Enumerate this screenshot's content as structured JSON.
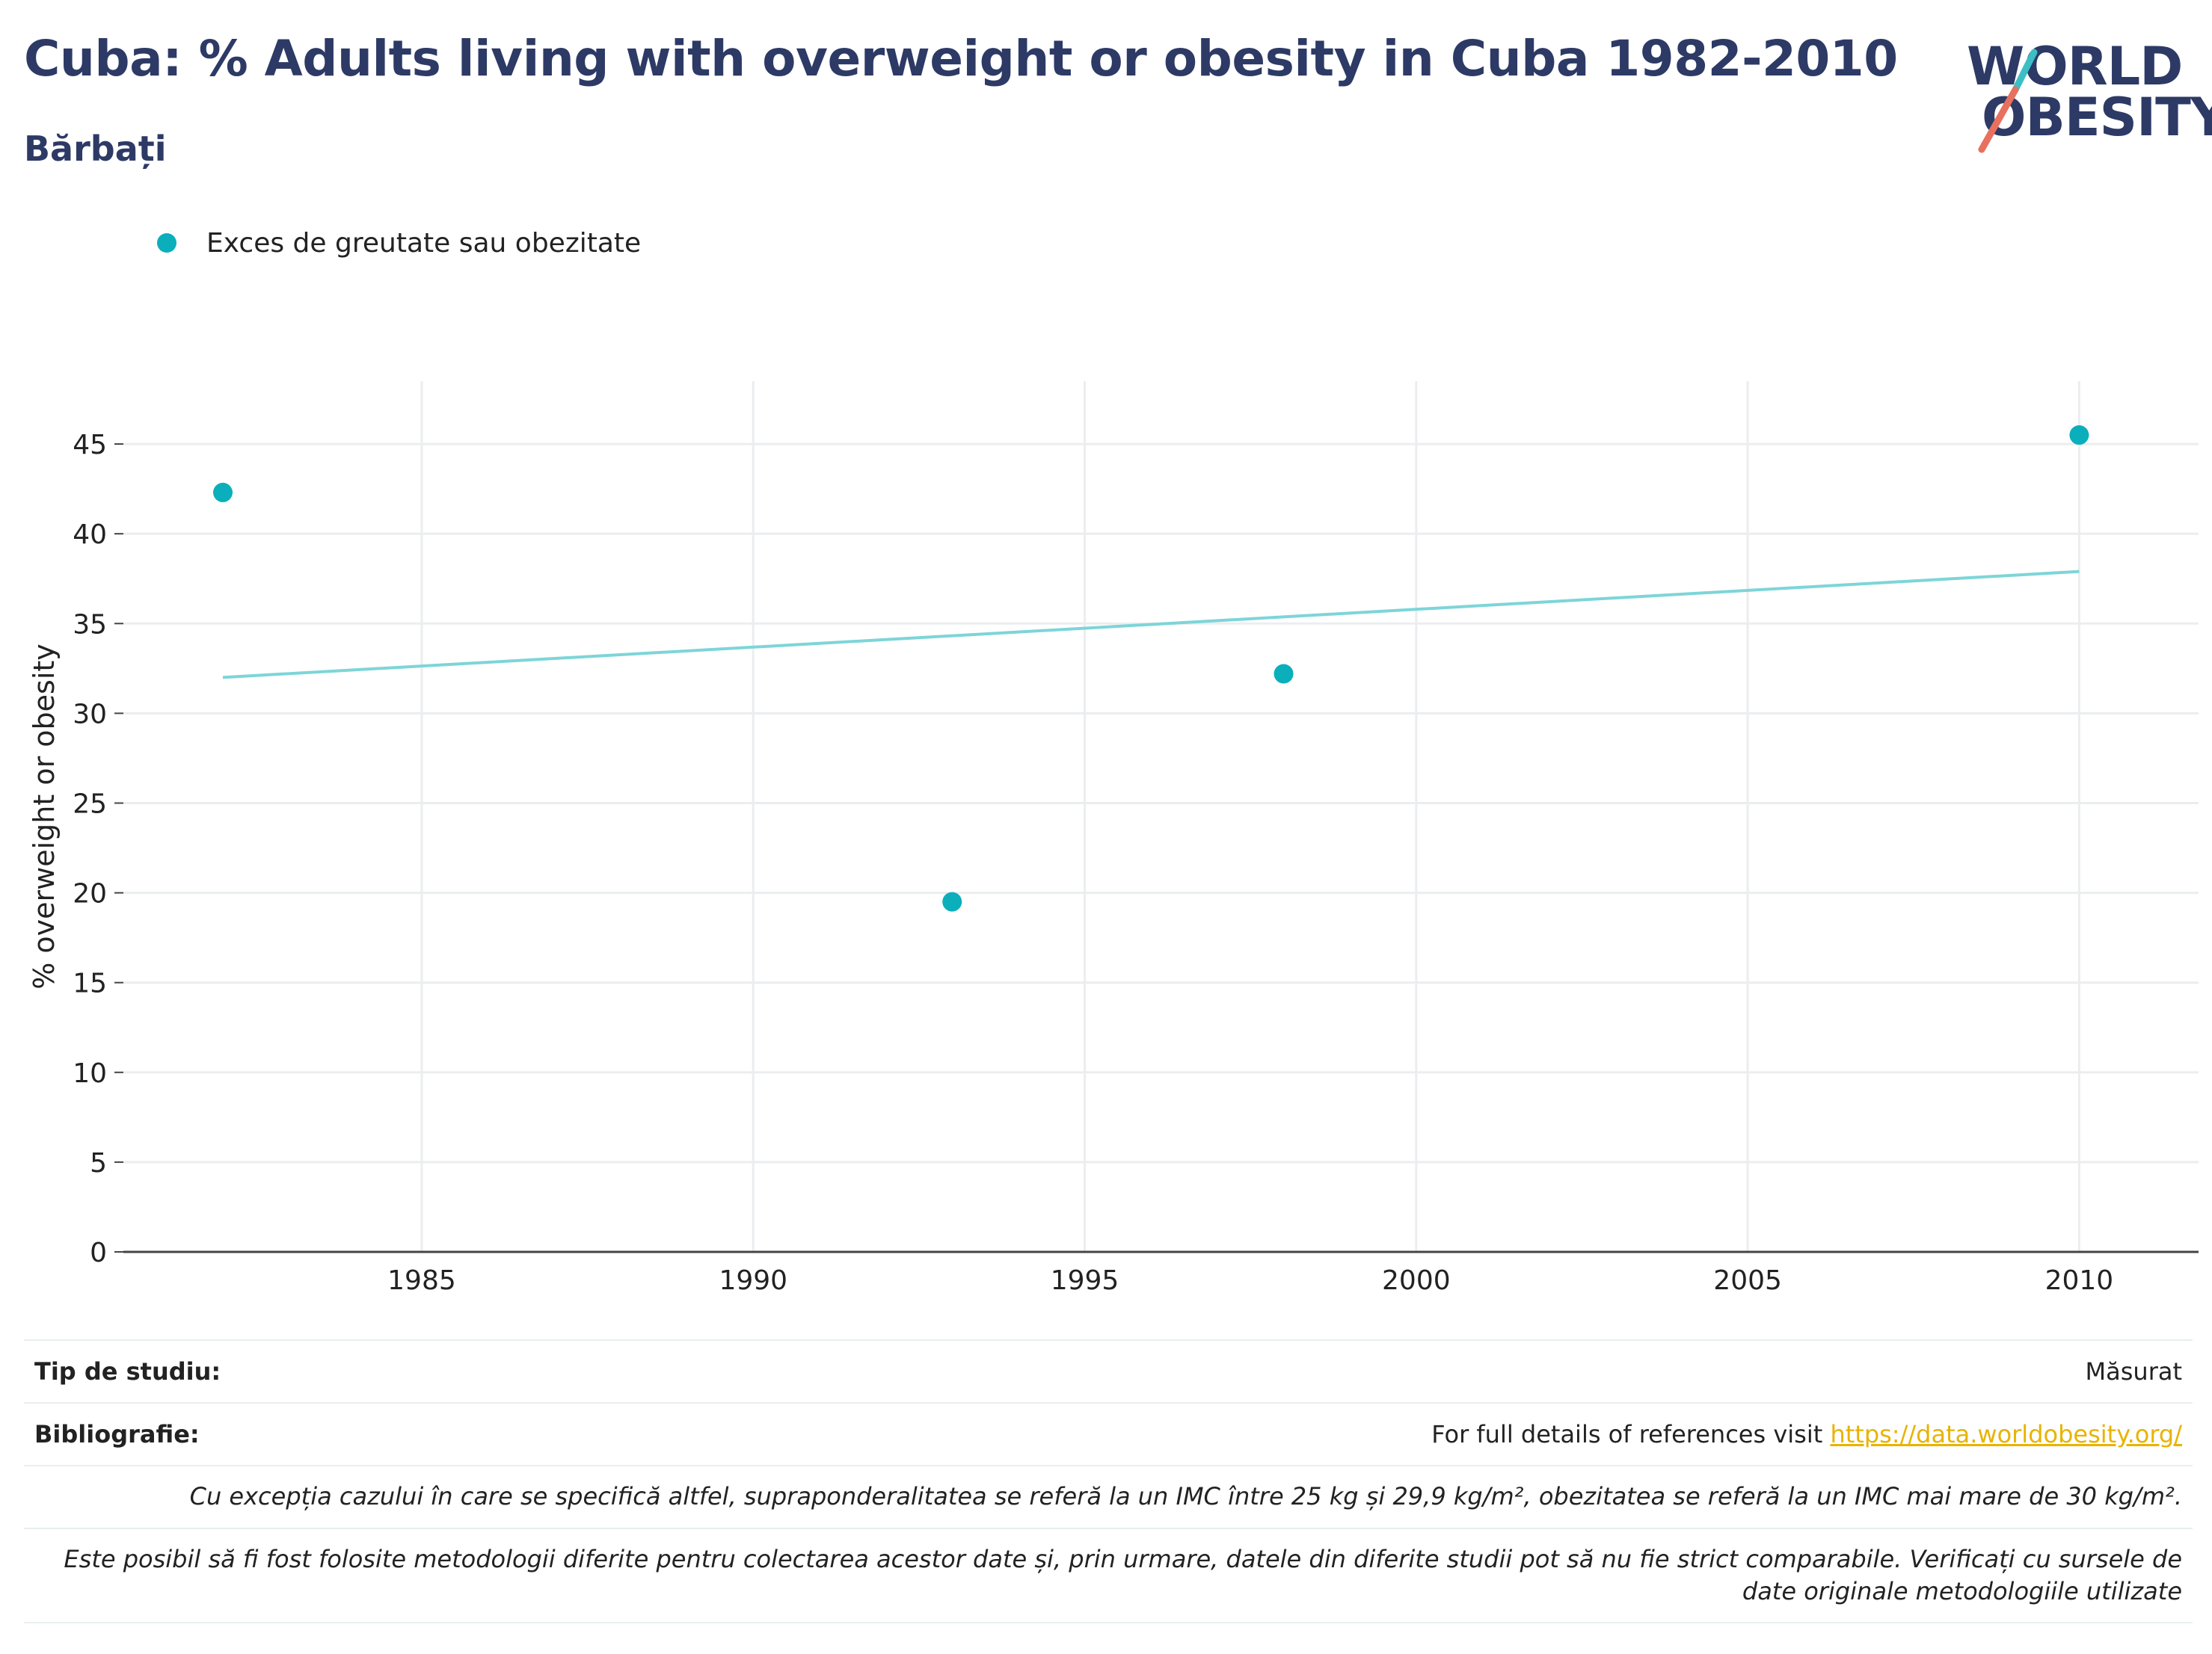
{
  "header": {
    "title": "Cuba: % Adults living with overweight or obesity in Cuba 1982-2010",
    "subtitle": "Bărbați"
  },
  "logo": {
    "line1": "WORLD",
    "line2": "OBESITY",
    "slash_colors": [
      "#3bbfc4",
      "#e7705f"
    ]
  },
  "legend": {
    "label": "Exces de greutate sau obezitate",
    "color": "#0aafbb"
  },
  "colors": {
    "points": "#0aafbb",
    "trend": "#7dd5d8",
    "grid": "#ebedef",
    "axis": "#444444",
    "title": "#2d3a66",
    "link": "#e8b300"
  },
  "chart_data": {
    "type": "scatter",
    "title": "Cuba: % Adults living with overweight or obesity in Cuba 1982-2010",
    "subtitle": "Bărbați",
    "ylabel": "% overweight or obesity",
    "xlabel": "",
    "xlim": [
      1980.5,
      2011.8
    ],
    "ylim": [
      0,
      48.5
    ],
    "xticks": [
      1985,
      1990,
      1995,
      2000,
      2005,
      2010
    ],
    "yticks": [
      0,
      5,
      10,
      15,
      20,
      25,
      30,
      35,
      40,
      45
    ],
    "grid": true,
    "legend_position": "top-left",
    "series": [
      {
        "name": "Exces de greutate sau obezitate",
        "x": [
          1982,
          1993,
          1998,
          2010
        ],
        "y": [
          42.3,
          19.5,
          32.2,
          45.5
        ]
      }
    ],
    "trendline": {
      "x": [
        1982,
        2010
      ],
      "y": [
        32.0,
        37.9
      ]
    }
  },
  "footer": {
    "study_type_label": "Tip de studiu:",
    "study_type_value": "Măsurat",
    "bibliography_label": "Bibliografie:",
    "bibliography_text": "For full details of references visit ",
    "bibliography_link": "https://data.worldobesity.org/",
    "note1": "Cu excepția cazului în care se specifică altfel, supraponderalitatea se referă la un IMC între 25 kg și 29,9 kg/m², obezitatea se referă la un IMC mai mare de 30 kg/m².",
    "note2": "Este posibil să fi fost folosite metodologii diferite pentru colectarea acestor date și, prin urmare, datele din diferite studii pot să nu fie strict comparabile. Verificați cu sursele de date originale metodologiile utilizate"
  }
}
